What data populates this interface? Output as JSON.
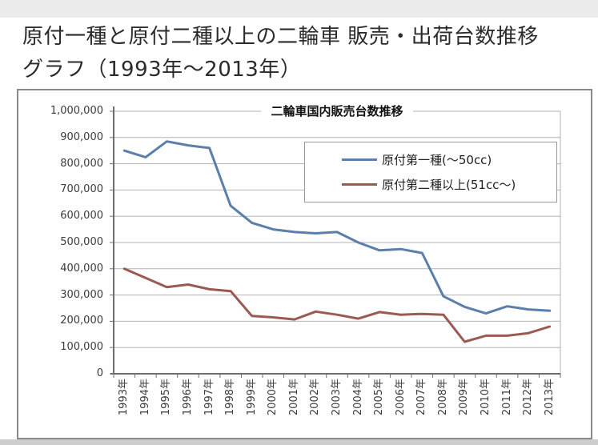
{
  "page": {
    "title_line1": "原付一種と原付二種以上の二輪車 販売・出荷台数推移",
    "title_line2": "グラフ（1993年〜2013年）"
  },
  "chart": {
    "colors": {
      "series1": "#5B7FAA",
      "series2": "#9A5A52",
      "grid": "#b4b4b4",
      "axis": "#6e6e6e",
      "text": "#3c3c3c"
    }
  },
  "chart_data": {
    "type": "line",
    "title": "二輪車国内販売台数推移",
    "categories": [
      "1993年",
      "1994年",
      "1995年",
      "1996年",
      "1997年",
      "1998年",
      "1999年",
      "2000年",
      "2001年",
      "2002年",
      "2003年",
      "2004年",
      "2005年",
      "2006年",
      "2007年",
      "2008年",
      "2009年",
      "2010年",
      "2011年",
      "2012年",
      "2013年"
    ],
    "series": [
      {
        "name": "原付第一種(～50cc)",
        "color": "#5B7FAA",
        "values": [
          850000,
          825000,
          885000,
          870000,
          860000,
          640000,
          575000,
          550000,
          540000,
          535000,
          540000,
          500000,
          470000,
          475000,
          460000,
          295000,
          255000,
          230000,
          257000,
          245000,
          240000
        ]
      },
      {
        "name": "原付第二種以上(51cc～)",
        "color": "#9A5A52",
        "values": [
          400000,
          365000,
          330000,
          340000,
          322000,
          315000,
          220000,
          215000,
          207000,
          237000,
          225000,
          210000,
          235000,
          225000,
          228000,
          225000,
          122000,
          145000,
          145000,
          155000,
          180000
        ]
      }
    ],
    "ylim": [
      0,
      1000000
    ],
    "ytick_interval": 100000,
    "ytick_labels": [
      "0",
      "100,000",
      "200,000",
      "300,000",
      "400,000",
      "500,000",
      "600,000",
      "700,000",
      "800,000",
      "900,000",
      "1,000,000"
    ],
    "grid": true,
    "legend_position": "upper right"
  }
}
